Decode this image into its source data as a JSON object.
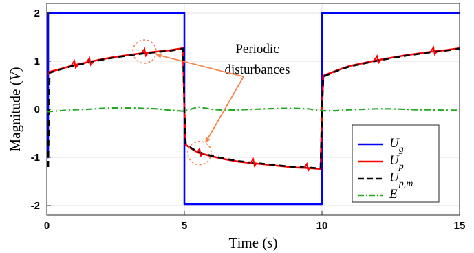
{
  "chart_data": {
    "type": "line",
    "xlabel": "Time (s)",
    "ylabel": "Magnitude (V)",
    "xlim": [
      0,
      15
    ],
    "ylim": [
      -2.2,
      2.2
    ],
    "x_ticks": [
      "0",
      "5",
      "10",
      "15"
    ],
    "y_ticks": [
      "2",
      "1",
      "0",
      "-1",
      "-2"
    ],
    "grid": true,
    "legend_position": "bottom-right",
    "series": [
      {
        "name": "U_g",
        "legend_label": "U",
        "legend_sub": "g",
        "color": "#0000ff",
        "style": "solid",
        "x": [
          0,
          0.05,
          0.05,
          5.0,
          5.0,
          10.0,
          10.0,
          15
        ],
        "y": [
          -1.0,
          -1.0,
          2.0,
          2.0,
          -1.97,
          -1.97,
          2.0,
          2.0
        ]
      },
      {
        "name": "U_p",
        "legend_label": "U",
        "legend_sub": "p",
        "color": "#ff0000",
        "style": "solid",
        "x": [
          0.05,
          0.1,
          0.5,
          1.0,
          1.5,
          2.0,
          2.5,
          3.0,
          3.5,
          4.0,
          4.5,
          4.95,
          5.0,
          5.05,
          5.2,
          5.5,
          6.0,
          6.5,
          7.0,
          7.5,
          8.0,
          8.5,
          9.0,
          9.5,
          9.95,
          10.0,
          10.05,
          10.5,
          11.0,
          11.5,
          12.0,
          12.5,
          13.0,
          13.5,
          14.0,
          14.5,
          15.0
        ],
        "y": [
          0.72,
          0.78,
          0.84,
          0.92,
          0.98,
          1.04,
          1.09,
          1.13,
          1.17,
          1.2,
          1.23,
          1.27,
          0.0,
          -0.74,
          -0.8,
          -0.9,
          -0.98,
          -1.04,
          -1.09,
          -1.12,
          -1.15,
          -1.18,
          -1.21,
          -1.22,
          -1.24,
          0.0,
          0.7,
          0.8,
          0.9,
          0.96,
          1.02,
          1.07,
          1.12,
          1.16,
          1.2,
          1.23,
          1.27
        ]
      },
      {
        "name": "U_p,m",
        "legend_label": "U",
        "legend_sub": "p,m",
        "color": "#000000",
        "style": "dashed",
        "x": [
          0.05,
          0.1,
          0.5,
          1.0,
          1.5,
          2.0,
          2.5,
          3.0,
          3.5,
          4.0,
          4.5,
          4.95,
          5.0,
          5.05,
          5.2,
          5.5,
          6.0,
          6.5,
          7.0,
          7.5,
          8.0,
          8.5,
          9.0,
          9.5,
          9.95,
          10.0,
          10.05,
          10.5,
          11.0,
          11.5,
          12.0,
          12.5,
          13.0,
          13.5,
          14.0,
          14.5,
          15.0
        ],
        "y": [
          -1.2,
          0.76,
          0.83,
          0.91,
          0.97,
          1.03,
          1.08,
          1.12,
          1.16,
          1.19,
          1.22,
          1.26,
          0.0,
          -0.73,
          -0.79,
          -0.89,
          -0.97,
          -1.03,
          -1.08,
          -1.11,
          -1.14,
          -1.17,
          -1.2,
          -1.21,
          -1.23,
          0.0,
          0.68,
          0.79,
          0.89,
          0.95,
          1.01,
          1.06,
          1.11,
          1.15,
          1.19,
          1.22,
          1.26
        ]
      },
      {
        "name": "E",
        "legend_label": "E",
        "legend_sub": "",
        "color": "#22aa22",
        "style": "dashdot",
        "x": [
          0,
          0.5,
          1.0,
          1.5,
          2.0,
          2.5,
          3.0,
          3.5,
          4.0,
          4.5,
          5.0,
          5.5,
          6.0,
          6.5,
          7.0,
          7.5,
          8.0,
          8.5,
          9.0,
          9.5,
          10.0,
          10.5,
          11.0,
          11.5,
          12.0,
          12.5,
          13.0,
          13.5,
          14.0,
          14.5,
          15.0
        ],
        "y": [
          -0.05,
          -0.03,
          -0.01,
          0.0,
          0.02,
          0.03,
          0.03,
          0.02,
          0.01,
          -0.02,
          -0.04,
          0.05,
          0.0,
          -0.02,
          -0.01,
          0.0,
          0.01,
          0.02,
          0.02,
          0.01,
          -0.03,
          -0.03,
          -0.01,
          0.0,
          0.01,
          0.01,
          0.0,
          -0.01,
          -0.01,
          -0.02,
          -0.02
        ]
      }
    ],
    "disturbances": [
      {
        "x": 1.0,
        "y": 0.92,
        "series": "U_p"
      },
      {
        "x": 1.55,
        "y": 0.98,
        "series": "U_p"
      },
      {
        "x": 3.55,
        "y": 1.17,
        "series": "U_p"
      },
      {
        "x": 5.55,
        "y": -0.91,
        "series": "U_p"
      },
      {
        "x": 7.5,
        "y": -1.12,
        "series": "U_p"
      },
      {
        "x": 9.45,
        "y": -1.22,
        "series": "U_p"
      },
      {
        "x": 12.0,
        "y": 1.02,
        "series": "U_p"
      },
      {
        "x": 14.05,
        "y": 1.2,
        "series": "U_p"
      }
    ],
    "annotation": {
      "text_line1": "Periodic",
      "text_line2": "disturbances",
      "color": "#f4844c",
      "targets": [
        {
          "x": 3.55,
          "y": 1.2
        },
        {
          "x": 5.55,
          "y": -0.91
        }
      ],
      "anchor": {
        "x": 7.15,
        "y": 0.68
      }
    }
  }
}
